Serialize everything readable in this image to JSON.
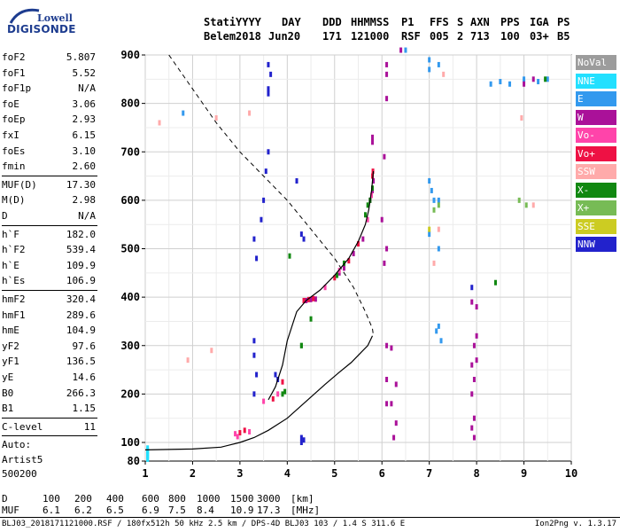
{
  "logo": {
    "line1": "Lowell",
    "line2": "DIGISONDE"
  },
  "header": {
    "labels": [
      "Stati",
      "YYYY",
      "DAY",
      "DDD",
      "HHMMSS",
      "P1",
      "FFS",
      "S",
      "AXN",
      "PPS",
      "IGA",
      "PS"
    ],
    "values": [
      "Belem",
      "2018",
      "Jun20",
      "171",
      "121000",
      "RSF",
      "005",
      "2",
      "713",
      "100",
      "03+",
      "B5"
    ]
  },
  "params": {
    "group1": [
      {
        "label": "foF2",
        "value": "5.807"
      },
      {
        "label": "foF1",
        "value": "5.52"
      },
      {
        "label": "foF1p",
        "value": "N/A"
      },
      {
        "label": "foE",
        "value": "3.06"
      },
      {
        "label": "foEp",
        "value": "2.93"
      },
      {
        "label": "fxI",
        "value": "6.15"
      },
      {
        "label": "foEs",
        "value": "3.10"
      },
      {
        "label": "fmin",
        "value": "2.60"
      }
    ],
    "group2": [
      {
        "label": "MUF(D)",
        "value": "17.30"
      },
      {
        "label": "M(D)",
        "value": "2.98"
      },
      {
        "label": "D",
        "value": "N/A"
      }
    ],
    "group3": [
      {
        "label": "h`F",
        "value": "182.0"
      },
      {
        "label": "h`F2",
        "value": "539.4"
      },
      {
        "label": "h`E",
        "value": "109.9"
      },
      {
        "label": "h`Es",
        "value": "106.9"
      }
    ],
    "group4": [
      {
        "label": "hmF2",
        "value": "320.4"
      },
      {
        "label": "hmF1",
        "value": "289.6"
      },
      {
        "label": "hmE",
        "value": "104.9"
      },
      {
        "label": "yF2",
        "value": "97.6"
      },
      {
        "label": "yF1",
        "value": "136.5"
      },
      {
        "label": "yE",
        "value": "14.6"
      },
      {
        "label": "B0",
        "value": "266.3"
      },
      {
        "label": "B1",
        "value": "1.15"
      }
    ],
    "group5": [
      {
        "label": "C-level",
        "value": "11"
      }
    ],
    "group6": [
      {
        "label": "Auto:",
        "value": ""
      },
      {
        "label": "Artist5",
        "value": ""
      },
      {
        "label": "500200",
        "value": ""
      }
    ]
  },
  "legend": [
    {
      "label": "NoVal",
      "color": "#9c9c9c"
    },
    {
      "label": "NNE",
      "color": "#22e0ff"
    },
    {
      "label": "E",
      "color": "#3399ee"
    },
    {
      "label": "W",
      "color": "#aa1199"
    },
    {
      "label": "Vo-",
      "color": "#ff44aa"
    },
    {
      "label": "Vo+",
      "color": "#ee1144"
    },
    {
      "label": "SSW",
      "color": "#ffaaaa"
    },
    {
      "label": "X-",
      "color": "#118811"
    },
    {
      "label": "X+",
      "color": "#77bb55"
    },
    {
      "label": "SSE",
      "color": "#cccc22"
    },
    {
      "label": "NNW",
      "color": "#2222cc"
    }
  ],
  "footer": {
    "dist_label": "D",
    "dist_values": [
      "100",
      "200",
      "400",
      "600",
      "800",
      "1000",
      "1500",
      "3000"
    ],
    "dist_unit": "[km]",
    "muf_label": "MUF",
    "muf_values": [
      "6.1",
      "6.2",
      "6.5",
      "6.9",
      "7.5",
      "8.4",
      "10.9",
      "17.3"
    ],
    "muf_unit": "[MHz]",
    "fileinfo": "BLJ03_2018171121000.RSF / 180fx512h 50 kHz 2.5 km / DPS-4D BLJ03 103 / 1.4 S 311.6 E",
    "version": "Ion2Png v. 1.3.17"
  },
  "chart_data": {
    "type": "scatter",
    "x_range": [
      1,
      10
    ],
    "y_range": [
      80,
      900
    ],
    "x_ticks": [
      "1",
      "2",
      "3",
      "4",
      "5",
      "6",
      "7",
      "8",
      "9",
      "10"
    ],
    "y_ticks": [
      "80",
      "100",
      "200",
      "300",
      "400",
      "500",
      "600",
      "700",
      "800",
      "900"
    ],
    "grid": true,
    "legend_position": "right",
    "profile_true_height": [
      [
        1.0,
        92
      ],
      [
        2.0,
        93
      ],
      [
        2.6,
        95
      ],
      [
        3.0,
        100
      ],
      [
        3.3,
        110
      ],
      [
        3.6,
        125
      ],
      [
        4.0,
        150
      ],
      [
        4.4,
        185
      ],
      [
        4.8,
        220
      ],
      [
        5.1,
        245
      ],
      [
        5.35,
        265
      ],
      [
        5.55,
        285
      ],
      [
        5.7,
        300
      ],
      [
        5.8,
        320
      ]
    ],
    "profile_virtual_dashed": [
      [
        1.5,
        900
      ],
      [
        2.0,
        830
      ],
      [
        2.5,
        760
      ],
      [
        3.0,
        700
      ],
      [
        3.5,
        650
      ],
      [
        4.0,
        600
      ],
      [
        4.5,
        540
      ],
      [
        5.0,
        480
      ],
      [
        5.4,
        420
      ],
      [
        5.65,
        370
      ],
      [
        5.8,
        335
      ],
      [
        5.82,
        320
      ]
    ],
    "trace_virtual_height": [
      [
        3.6,
        188
      ],
      [
        3.75,
        215
      ],
      [
        3.9,
        260
      ],
      [
        4.0,
        310
      ],
      [
        4.2,
        370
      ],
      [
        4.4,
        393
      ],
      [
        4.7,
        415
      ],
      [
        5.0,
        445
      ],
      [
        5.3,
        480
      ],
      [
        5.5,
        515
      ],
      [
        5.65,
        550
      ],
      [
        5.72,
        580
      ],
      [
        5.78,
        620
      ],
      [
        5.82,
        660
      ]
    ],
    "echo_groups": [
      {
        "color": "#aa1199",
        "points": [
          [
            4.4,
            393
          ],
          [
            4.5,
            395
          ],
          [
            4.6,
            396
          ],
          [
            5.1,
            450
          ],
          [
            5.2,
            460
          ],
          [
            5.4,
            490
          ],
          [
            5.6,
            520
          ],
          [
            5.75,
            600
          ],
          [
            5.8,
            620
          ],
          [
            5.82,
            640
          ],
          [
            5.8,
            720
          ],
          [
            5.8,
            730
          ]
        ]
      },
      {
        "color": "#ee1144",
        "points": [
          [
            3.7,
            190
          ],
          [
            3.9,
            225
          ],
          [
            4.35,
            393
          ],
          [
            4.45,
            395
          ],
          [
            4.55,
            397
          ],
          [
            5.0,
            440
          ],
          [
            5.3,
            475
          ],
          [
            5.5,
            510
          ],
          [
            5.8,
            650
          ],
          [
            5.81,
            660
          ],
          [
            3.0,
            120
          ],
          [
            3.1,
            125
          ]
        ]
      },
      {
        "color": "#ff44aa",
        "points": [
          [
            3.5,
            185
          ],
          [
            3.8,
            200
          ],
          [
            4.8,
            420
          ],
          [
            5.1,
            455
          ],
          [
            5.7,
            560
          ],
          [
            5.78,
            610
          ],
          [
            2.9,
            118
          ],
          [
            3.2,
            122
          ],
          [
            2.95,
            112
          ]
        ]
      },
      {
        "color": "#118811",
        "points": [
          [
            5.05,
            445
          ],
          [
            5.2,
            470
          ],
          [
            5.65,
            570
          ],
          [
            5.7,
            590
          ],
          [
            5.75,
            600
          ],
          [
            5.8,
            625
          ],
          [
            4.5,
            355
          ],
          [
            4.3,
            300
          ],
          [
            3.9,
            200
          ],
          [
            3.95,
            205
          ],
          [
            4.05,
            485
          ]
        ]
      },
      {
        "color": "#3399ee",
        "points": [
          [
            7.0,
            890
          ],
          [
            7.0,
            870
          ],
          [
            7.2,
            880
          ],
          [
            7.0,
            640
          ],
          [
            7.05,
            620
          ],
          [
            7.1,
            600
          ],
          [
            7.0,
            530
          ],
          [
            7.2,
            500
          ],
          [
            7.15,
            330
          ],
          [
            7.2,
            340
          ],
          [
            7.25,
            310
          ],
          [
            8.3,
            840
          ],
          [
            8.5,
            845
          ],
          [
            8.7,
            840
          ],
          [
            9.0,
            850
          ],
          [
            9.3,
            845
          ],
          [
            9.5,
            850
          ],
          [
            6.5,
            910
          ],
          [
            7.2,
            600
          ],
          [
            1.8,
            780
          ]
        ]
      },
      {
        "color": "#2222cc",
        "points": [
          [
            3.6,
            880
          ],
          [
            3.65,
            860
          ],
          [
            3.6,
            830
          ],
          [
            3.6,
            820
          ],
          [
            3.6,
            700
          ],
          [
            3.55,
            660
          ],
          [
            3.5,
            600
          ],
          [
            3.45,
            560
          ],
          [
            3.3,
            520
          ],
          [
            3.35,
            480
          ],
          [
            3.3,
            310
          ],
          [
            3.3,
            280
          ],
          [
            3.35,
            240
          ],
          [
            3.3,
            200
          ],
          [
            3.8,
            230
          ],
          [
            3.75,
            240
          ],
          [
            4.3,
            530
          ],
          [
            4.35,
            520
          ],
          [
            4.2,
            640
          ],
          [
            4.3,
            110
          ],
          [
            4.35,
            105
          ],
          [
            4.3,
            100
          ],
          [
            7.9,
            420
          ]
        ]
      },
      {
        "color": "#aa1199",
        "points": [
          [
            6.1,
            880
          ],
          [
            6.1,
            860
          ],
          [
            6.1,
            810
          ],
          [
            6.05,
            690
          ],
          [
            6.0,
            560
          ],
          [
            6.1,
            500
          ],
          [
            6.05,
            470
          ],
          [
            6.1,
            300
          ],
          [
            6.2,
            295
          ],
          [
            6.1,
            230
          ],
          [
            6.3,
            220
          ],
          [
            6.2,
            180
          ],
          [
            6.3,
            140
          ],
          [
            6.25,
            110
          ],
          [
            6.1,
            180
          ],
          [
            6.4,
            910
          ],
          [
            7.9,
            390
          ],
          [
            8.0,
            380
          ],
          [
            8.0,
            320
          ],
          [
            7.95,
            300
          ],
          [
            8.0,
            270
          ],
          [
            7.9,
            260
          ],
          [
            7.95,
            230
          ],
          [
            7.9,
            200
          ],
          [
            7.95,
            150
          ],
          [
            7.9,
            130
          ],
          [
            7.95,
            110
          ],
          [
            9.0,
            840
          ],
          [
            9.2,
            850
          ]
        ]
      },
      {
        "color": "#ffaaaa",
        "points": [
          [
            1.3,
            760
          ],
          [
            1.9,
            270
          ],
          [
            2.5,
            770
          ],
          [
            3.2,
            780
          ],
          [
            2.4,
            290
          ],
          [
            7.3,
            860
          ],
          [
            8.95,
            770
          ],
          [
            9.2,
            590
          ],
          [
            7.2,
            540
          ],
          [
            7.1,
            470
          ]
        ]
      },
      {
        "color": "#77bb55",
        "points": [
          [
            7.1,
            580
          ],
          [
            7.2,
            590
          ],
          [
            9.05,
            590
          ],
          [
            8.9,
            600
          ]
        ]
      },
      {
        "color": "#cccc22",
        "points": [
          [
            7.0,
            540
          ]
        ]
      },
      {
        "color": "#118811",
        "points": [
          [
            4.3,
            300
          ],
          [
            9.45,
            850
          ],
          [
            8.4,
            430
          ]
        ]
      },
      {
        "color": "#22e0ff",
        "points": [
          [
            1.05,
            82
          ],
          [
            1.05,
            84
          ],
          [
            1.05,
            86
          ],
          [
            1.05,
            88
          ],
          [
            1.05,
            90
          ],
          [
            1.05,
            92
          ],
          [
            1.05,
            94
          ]
        ]
      }
    ]
  }
}
